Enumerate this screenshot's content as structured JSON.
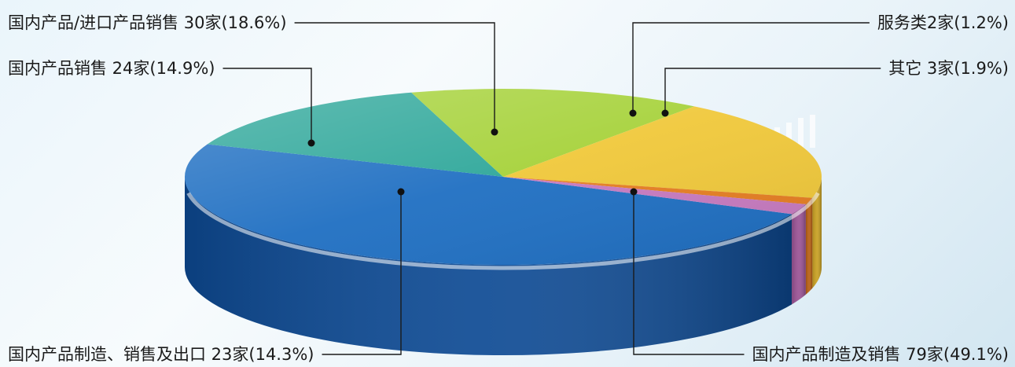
{
  "chart_data": {
    "type": "pie",
    "title": "",
    "slices": [
      {
        "label": "国内产品制造及销售 79家(49.1%)",
        "count": 79,
        "percent": 49.1,
        "color": "#1f6fc2",
        "side": "#0d4a94"
      },
      {
        "label": "国内产品制造、销售及出口 23家(14.3%)",
        "count": 23,
        "percent": 14.3,
        "color": "#2ea79a",
        "side": "#1c8a80"
      },
      {
        "label": "国内产品销售 24家(14.9%)",
        "count": 24,
        "percent": 14.9,
        "color": "#a6d23a",
        "side": "#7ea826"
      },
      {
        "label": "国内产品/进口产品销售 30家(18.6%)",
        "count": 30,
        "percent": 18.6,
        "color": "#f0c83a",
        "side": "#c8a020"
      },
      {
        "label": "服务类2家(1.2%)",
        "count": 2,
        "percent": 1.2,
        "color": "#e67e22",
        "side": "#b85e10"
      },
      {
        "label": "其它 3家(1.9%)",
        "count": 3,
        "percent": 1.9,
        "color": "#c77ac0",
        "side": "#9a5294"
      }
    ]
  }
}
